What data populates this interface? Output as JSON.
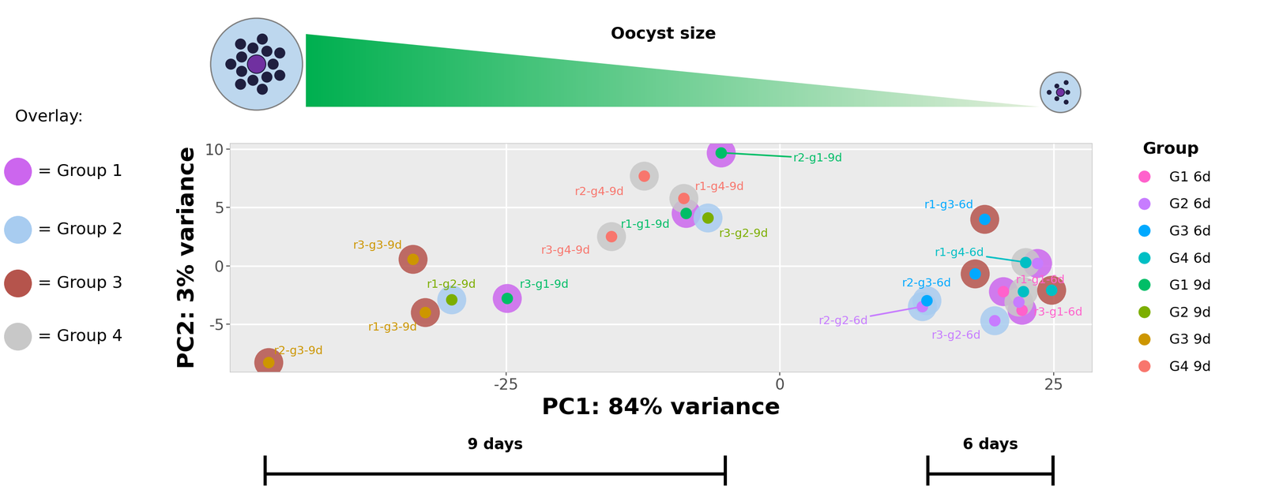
{
  "chart_data": {
    "type": "scatter",
    "xlabel": "PC1: 84% variance",
    "ylabel": "PC2: 3% variance",
    "xlim": [
      -50.2,
      28.5
    ],
    "ylim": [
      -9.1,
      10.5
    ],
    "xticks": [
      -25,
      0,
      25
    ],
    "yticks": [
      -5,
      0,
      5,
      10
    ],
    "grid": true,
    "legend": "right",
    "legend_title": "Group",
    "marker": "circle",
    "series": [
      {
        "name": "G1 6d",
        "color": "#FF61CC",
        "x": [
          20.4,
          22.1
        ],
        "y": [
          -2.2,
          -3.8
        ],
        "labels": [
          "r1-g1-6d",
          "r3-g1-6d"
        ],
        "overlay": [
          "= Group 1",
          "= Group 1"
        ]
      },
      {
        "name": "G2 6d",
        "color": "#C77CFF",
        "x": [
          23.5,
          13.0,
          19.6,
          21.8
        ],
        "y": [
          0.2,
          -3.5,
          -4.7,
          -3.1
        ],
        "labels": [
          null,
          "r2-g2-6d",
          "r3-g2-6d",
          null
        ],
        "overlay": [
          "= Group 1",
          "= Group 2",
          "= Group 2",
          "= Group 4"
        ]
      },
      {
        "name": "G3 6d",
        "color": "#00A9FF",
        "x": [
          18.7,
          13.4,
          17.8
        ],
        "y": [
          4.0,
          -3.0,
          -0.7
        ],
        "labels": [
          "r1-g3-6d",
          "r2-g3-6d",
          null
        ],
        "overlay": [
          "= Group 3",
          "= Group 2",
          "= Group 3"
        ]
      },
      {
        "name": "G4 6d",
        "color": "#00BFC4",
        "x": [
          22.4,
          22.2,
          24.8
        ],
        "y": [
          0.3,
          -2.2,
          -2.1
        ],
        "labels": [
          "r1-g4-6d",
          null,
          null
        ],
        "overlay": [
          "= Group 4",
          "= Group 4",
          "= Group 3"
        ]
      },
      {
        "name": "G1 9d",
        "color": "#00BE67",
        "x": [
          -5.4,
          -8.6,
          -24.9
        ],
        "y": [
          9.7,
          4.5,
          -2.8
        ],
        "labels": [
          "r2-g1-9d",
          "r1-g1-9d",
          "r3-g1-9d"
        ],
        "overlay": [
          "= Group 1",
          "= Group 1",
          "= Group 1"
        ]
      },
      {
        "name": "G2 9d",
        "color": "#7CAE00",
        "x": [
          -6.6,
          -30.0
        ],
        "y": [
          4.1,
          -2.9
        ],
        "labels": [
          "r3-g2-9d",
          "r1-g2-9d"
        ],
        "overlay": [
          "= Group 2",
          "= Group 2"
        ]
      },
      {
        "name": "G3 9d",
        "color": "#CD9600",
        "x": [
          -33.5,
          -32.4,
          -46.7
        ],
        "y": [
          0.55,
          -4.0,
          -8.3
        ],
        "labels": [
          "r3-g3-9d",
          "r1-g3-9d",
          "r2-g3-9d"
        ],
        "overlay": [
          "= Group 3",
          "= Group 3",
          "= Group 3"
        ]
      },
      {
        "name": "G4 9d",
        "color": "#F8766D",
        "x": [
          -12.4,
          -8.8,
          -15.4
        ],
        "y": [
          7.7,
          5.8,
          2.5
        ],
        "labels": [
          "r2-g4-9d",
          "r1-g4-9d",
          "r3-g4-9d"
        ],
        "overlay": [
          "= Group 4",
          "= Group 4",
          "= Group 4"
        ]
      }
    ],
    "overlay": {
      "title": "Overlay:",
      "groups": [
        {
          "name": "= Group 1",
          "color": "#CC66EE"
        },
        {
          "name": "= Group 2",
          "color": "#A8CCF0"
        },
        {
          "name": "= Group 3",
          "color": "#B5544C"
        },
        {
          "name": "= Group 4",
          "color": "#C8C8C8"
        }
      ]
    },
    "annotations": {
      "gradient": "Oocyst size",
      "brackets": [
        {
          "label": "9 days",
          "start": -47,
          "end": -5
        },
        {
          "label": "6 days",
          "start": 13.5,
          "end": 24.9
        }
      ]
    }
  }
}
